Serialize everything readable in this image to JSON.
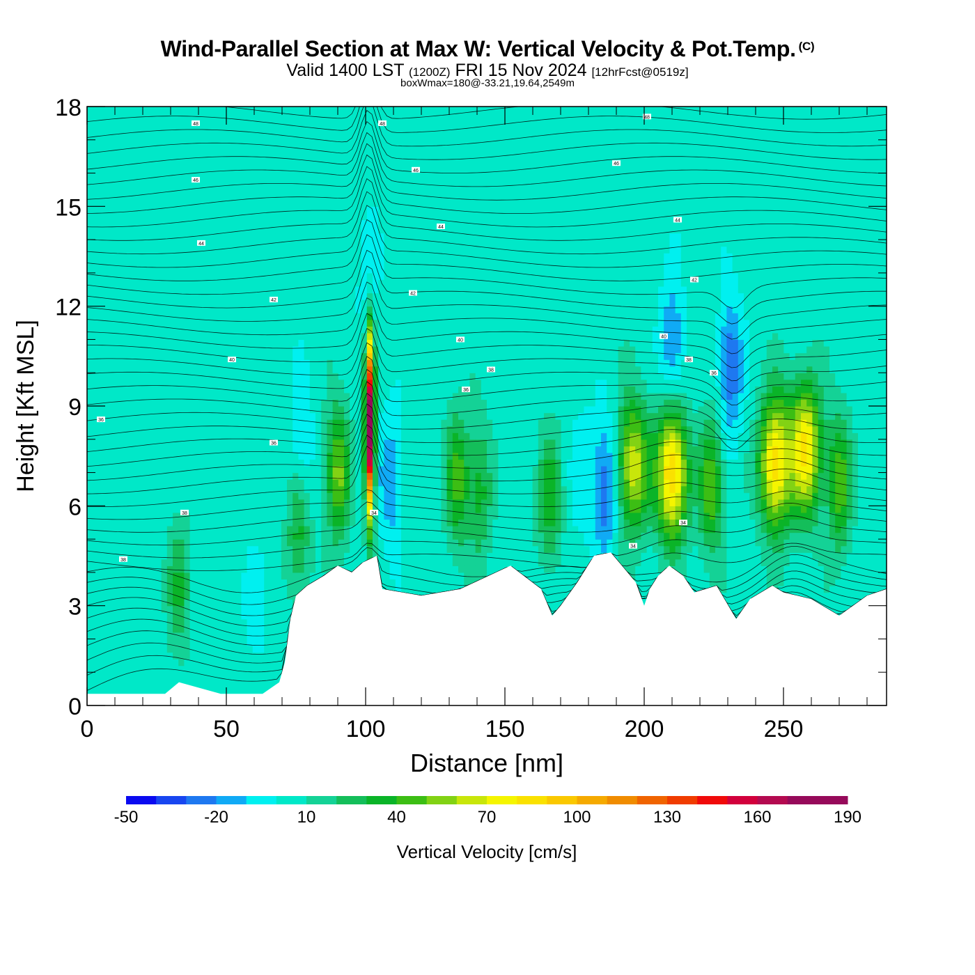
{
  "header": {
    "title": "Wind-Parallel Section at Max W: Vertical Velocity & Pot.Temp.",
    "copyright_mark": "(C)",
    "valid_prefix": "Valid 1400 LST",
    "valid_utc": "(1200Z)",
    "valid_date": "FRI 15 Nov 2024",
    "forecast": "[12hrFcst@0519z]",
    "box_info": "boxWmax=180@-33.21,19.64,2549m"
  },
  "chart_data": {
    "type": "heatmap",
    "xlabel": "Distance [nm]",
    "ylabel": "Height [Kft MSL]",
    "xlim": [
      0,
      287
    ],
    "ylim": [
      0,
      18
    ],
    "x_ticks": [
      "0",
      "50",
      "100",
      "150",
      "200",
      "250"
    ],
    "y_ticks": [
      "0",
      "3",
      "6",
      "9",
      "12",
      "15",
      "18"
    ],
    "colorbar": {
      "label": "Vertical Velocity [cm/s]",
      "min": -50,
      "max": 190,
      "step": 10,
      "tick_labels": [
        "-50",
        "-20",
        "10",
        "40",
        "70",
        "100",
        "130",
        "160",
        "190"
      ],
      "colors": [
        "#0a0af0",
        "#1846f0",
        "#1e78f0",
        "#10aaf5",
        "#00f0f0",
        "#00e8c8",
        "#14d296",
        "#14be5a",
        "#0ab428",
        "#3cbe14",
        "#82d214",
        "#c8e60a",
        "#f5f500",
        "#fae100",
        "#fac800",
        "#f5aa00",
        "#f08c00",
        "#f06400",
        "#f03c00",
        "#f00a0a",
        "#d2003c",
        "#b40a50",
        "#960a5a",
        "#960a5a"
      ]
    },
    "background_value_cm_s": 5,
    "updrafts": [
      {
        "x": 101.5,
        "z": 8.4,
        "peak": 180
      },
      {
        "x": 210,
        "z": 7.0,
        "peak": 88
      },
      {
        "x": 247,
        "z": 7.3,
        "peak": 82
      },
      {
        "x": 258,
        "z": 7.7,
        "peak": 76
      },
      {
        "x": 196,
        "z": 7.2,
        "peak": 62
      },
      {
        "x": 90,
        "z": 7.0,
        "peak": 48
      },
      {
        "x": 133,
        "z": 6.8,
        "peak": 38
      },
      {
        "x": 141,
        "z": 6.5,
        "peak": 30
      },
      {
        "x": 224,
        "z": 6.6,
        "peak": 44
      },
      {
        "x": 270,
        "z": 6.7,
        "peak": 42
      },
      {
        "x": 166,
        "z": 6.2,
        "peak": 32
      },
      {
        "x": 76,
        "z": 5.2,
        "peak": 30
      },
      {
        "x": 33,
        "z": 3.6,
        "peak": 25
      }
    ],
    "downdrafts": [
      {
        "x": 186,
        "z": 6.5,
        "peak": -35
      },
      {
        "x": 109,
        "z": 6.8,
        "peak": -25
      },
      {
        "x": 77,
        "z": 7.8,
        "peak": -18
      },
      {
        "x": 231,
        "z": 10.2,
        "peak": -35
      },
      {
        "x": 210,
        "z": 10.8,
        "peak": -28
      },
      {
        "x": 101,
        "z": 12.8,
        "peak": -12
      },
      {
        "x": 178,
        "z": 7.0,
        "peak": -12
      },
      {
        "x": 61,
        "z": 3.0,
        "peak": -10
      }
    ],
    "terrain_height": {
      "x": [
        0,
        28,
        33,
        48,
        63,
        69,
        71,
        73,
        75,
        79,
        85,
        90,
        95,
        99,
        104,
        106,
        120,
        134,
        152,
        163,
        167,
        170,
        176,
        182,
        188,
        192,
        197,
        200,
        202,
        205,
        209,
        214,
        218,
        226,
        233,
        238,
        246,
        250,
        260,
        270,
        280,
        287
      ],
      "height": [
        0.35,
        0.35,
        0.7,
        0.35,
        0.35,
        0.7,
        1.3,
        2.6,
        3.3,
        3.6,
        3.9,
        4.2,
        4.0,
        4.3,
        4.5,
        3.5,
        3.3,
        3.5,
        4.2,
        3.5,
        2.7,
        3.0,
        3.7,
        4.5,
        4.6,
        4.2,
        3.7,
        3.0,
        3.5,
        3.9,
        4.2,
        3.9,
        3.4,
        3.6,
        2.6,
        3.2,
        3.6,
        3.4,
        3.2,
        2.7,
        3.3,
        3.5
      ]
    },
    "theta_contours_K": [
      {
        "value": 36,
        "label_x": 5,
        "label_z": 8.6
      },
      {
        "value": 36,
        "label_x": 67,
        "label_z": 7.9
      },
      {
        "value": 38,
        "label_x": 13,
        "label_z": 4.4
      },
      {
        "value": 38,
        "label_x": 35,
        "label_z": 5.8
      },
      {
        "value": 36,
        "label_x": 136,
        "label_z": 9.5
      },
      {
        "value": 38,
        "label_x": 145,
        "label_z": 10.1
      },
      {
        "value": 40,
        "label_x": 52,
        "label_z": 10.4
      },
      {
        "value": 40,
        "label_x": 134,
        "label_z": 11.0
      },
      {
        "value": 42,
        "label_x": 67,
        "label_z": 12.2
      },
      {
        "value": 42,
        "label_x": 117,
        "label_z": 12.4
      },
      {
        "value": 44,
        "label_x": 41,
        "label_z": 13.9
      },
      {
        "value": 44,
        "label_x": 127,
        "label_z": 14.4
      },
      {
        "value": 46,
        "label_x": 39,
        "label_z": 15.8
      },
      {
        "value": 46,
        "label_x": 118,
        "label_z": 16.1
      },
      {
        "value": 46,
        "label_x": 190,
        "label_z": 16.3
      },
      {
        "value": 48,
        "label_x": 39,
        "label_z": 17.5
      },
      {
        "value": 48,
        "label_x": 106,
        "label_z": 17.5
      },
      {
        "value": 40,
        "label_x": 207,
        "label_z": 11.1
      },
      {
        "value": 38,
        "label_x": 216,
        "label_z": 10.4
      },
      {
        "value": 36,
        "label_x": 225,
        "label_z": 10.0
      },
      {
        "value": 42,
        "label_x": 218,
        "label_z": 12.8
      },
      {
        "value": 44,
        "label_x": 212,
        "label_z": 14.6
      },
      {
        "value": 48,
        "label_x": 201,
        "label_z": 17.7
      },
      {
        "value": 34,
        "label_x": 103,
        "label_z": 5.8
      },
      {
        "value": 34,
        "label_x": 196,
        "label_z": 4.8
      },
      {
        "value": 34,
        "label_x": 214,
        "label_z": 5.5
      }
    ]
  }
}
